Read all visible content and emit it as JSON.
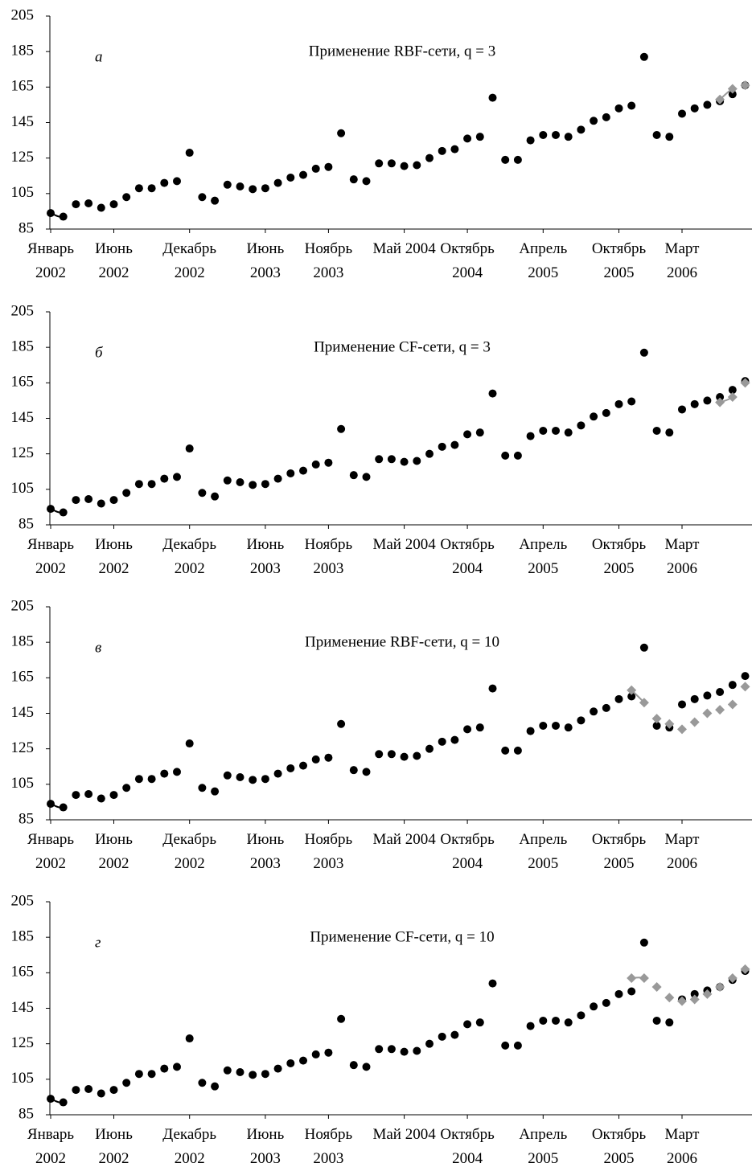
{
  "chart_data": [
    {
      "type": "line",
      "letter": "а",
      "title": "Применение RBF-сети, q = 3",
      "categories": [
        "Январь 2002",
        null,
        null,
        null,
        null,
        "Июнь 2002",
        null,
        null,
        null,
        null,
        null,
        "Декабрь 2002",
        null,
        null,
        null,
        null,
        null,
        "Июнь 2003",
        null,
        null,
        null,
        null,
        "Ноябрь 2003",
        null,
        null,
        null,
        null,
        null,
        "Май 2004",
        null,
        null,
        null,
        null,
        "Октябрь 2004",
        null,
        null,
        null,
        null,
        null,
        "Апрель 2005",
        null,
        null,
        null,
        null,
        null,
        "Октябрь 2005",
        null,
        null,
        null,
        null,
        "Март 2006",
        null,
        null,
        null,
        null,
        null
      ],
      "ylim": [
        85,
        205
      ],
      "yticks": [
        85,
        105,
        125,
        145,
        165,
        185,
        205
      ],
      "series": [
        {
          "color": "#000000",
          "marker": "circle",
          "line": true,
          "values": [
            94,
            92,
            99,
            99.5,
            97,
            99,
            103,
            108,
            108,
            111,
            112,
            128,
            103,
            101,
            110,
            109,
            107.5,
            108,
            111,
            114,
            115.5,
            119,
            120,
            139,
            113,
            112,
            122,
            122,
            120.5,
            121,
            125,
            129,
            130,
            136,
            137,
            159,
            124,
            124,
            135,
            138,
            138,
            137,
            141,
            146,
            148,
            153,
            154.5,
            182,
            138,
            137,
            150,
            153,
            155,
            157,
            null,
            null
          ]
        },
        {
          "color": "#000000",
          "marker": "circle",
          "line": false,
          "values": [
            null,
            null,
            null,
            null,
            null,
            null,
            null,
            null,
            null,
            null,
            null,
            null,
            null,
            null,
            null,
            null,
            null,
            null,
            null,
            null,
            null,
            null,
            null,
            null,
            null,
            null,
            null,
            null,
            null,
            null,
            null,
            null,
            null,
            null,
            null,
            null,
            null,
            null,
            null,
            null,
            null,
            null,
            null,
            null,
            null,
            null,
            null,
            null,
            null,
            null,
            null,
            null,
            null,
            null,
            161,
            166
          ]
        },
        {
          "color": "#999999",
          "marker": "diamond",
          "line": true,
          "values": [
            null,
            null,
            null,
            null,
            null,
            null,
            null,
            null,
            null,
            null,
            null,
            null,
            null,
            null,
            null,
            null,
            null,
            null,
            null,
            null,
            null,
            null,
            null,
            null,
            null,
            null,
            null,
            null,
            null,
            null,
            null,
            null,
            null,
            null,
            null,
            null,
            null,
            null,
            null,
            null,
            null,
            null,
            null,
            null,
            null,
            null,
            null,
            null,
            null,
            null,
            null,
            null,
            null,
            158,
            164,
            166
          ]
        }
      ]
    },
    {
      "type": "line",
      "letter": "б",
      "title": "Применение CF-сети, q = 3",
      "categories": [
        "Январь 2002",
        null,
        null,
        null,
        null,
        "Июнь 2002",
        null,
        null,
        null,
        null,
        null,
        "Декабрь 2002",
        null,
        null,
        null,
        null,
        null,
        "Июнь 2003",
        null,
        null,
        null,
        null,
        "Ноябрь 2003",
        null,
        null,
        null,
        null,
        null,
        "Май 2004",
        null,
        null,
        null,
        null,
        "Октябрь 2004",
        null,
        null,
        null,
        null,
        null,
        "Апрель 2005",
        null,
        null,
        null,
        null,
        null,
        "Октябрь 2005",
        null,
        null,
        null,
        null,
        "Март 2006",
        null,
        null,
        null,
        null,
        null
      ],
      "ylim": [
        85,
        205
      ],
      "yticks": [
        85,
        105,
        125,
        145,
        165,
        185,
        205
      ],
      "series": [
        {
          "color": "#000000",
          "marker": "circle",
          "line": true,
          "values": [
            94,
            92,
            99,
            99.5,
            97,
            99,
            103,
            108,
            108,
            111,
            112,
            128,
            103,
            101,
            110,
            109,
            107.5,
            108,
            111,
            114,
            115.5,
            119,
            120,
            139,
            113,
            112,
            122,
            122,
            120.5,
            121,
            125,
            129,
            130,
            136,
            137,
            159,
            124,
            124,
            135,
            138,
            138,
            137,
            141,
            146,
            148,
            153,
            154.5,
            182,
            138,
            137,
            150,
            153,
            155,
            157,
            null,
            null
          ]
        },
        {
          "color": "#000000",
          "marker": "circle",
          "line": false,
          "values": [
            null,
            null,
            null,
            null,
            null,
            null,
            null,
            null,
            null,
            null,
            null,
            null,
            null,
            null,
            null,
            null,
            null,
            null,
            null,
            null,
            null,
            null,
            null,
            null,
            null,
            null,
            null,
            null,
            null,
            null,
            null,
            null,
            null,
            null,
            null,
            null,
            null,
            null,
            null,
            null,
            null,
            null,
            null,
            null,
            null,
            null,
            null,
            null,
            null,
            null,
            null,
            null,
            null,
            null,
            161,
            166
          ]
        },
        {
          "color": "#999999",
          "marker": "diamond",
          "line": true,
          "values": [
            null,
            null,
            null,
            null,
            null,
            null,
            null,
            null,
            null,
            null,
            null,
            null,
            null,
            null,
            null,
            null,
            null,
            null,
            null,
            null,
            null,
            null,
            null,
            null,
            null,
            null,
            null,
            null,
            null,
            null,
            null,
            null,
            null,
            null,
            null,
            null,
            null,
            null,
            null,
            null,
            null,
            null,
            null,
            null,
            null,
            null,
            null,
            null,
            null,
            null,
            null,
            null,
            null,
            154,
            157,
            165
          ]
        }
      ]
    },
    {
      "type": "line",
      "letter": "в",
      "title": "Применение RBF-сети, q = 10",
      "categories": [
        "Январь 2002",
        null,
        null,
        null,
        null,
        "Июнь 2002",
        null,
        null,
        null,
        null,
        null,
        "Декабрь 2002",
        null,
        null,
        null,
        null,
        null,
        "Июнь 2003",
        null,
        null,
        null,
        null,
        "Ноябрь 2003",
        null,
        null,
        null,
        null,
        null,
        "Май 2004",
        null,
        null,
        null,
        null,
        "Октябрь 2004",
        null,
        null,
        null,
        null,
        null,
        "Апрель 2005",
        null,
        null,
        null,
        null,
        null,
        "Октябрь 2005",
        null,
        null,
        null,
        null,
        "Март 2006",
        null,
        null,
        null,
        null,
        null
      ],
      "ylim": [
        85,
        205
      ],
      "yticks": [
        85,
        105,
        125,
        145,
        165,
        185,
        205
      ],
      "series": [
        {
          "color": "#000000",
          "marker": "circle",
          "line": true,
          "values": [
            94,
            92,
            99,
            99.5,
            97,
            99,
            103,
            108,
            108,
            111,
            112,
            128,
            103,
            101,
            110,
            109,
            107.5,
            108,
            111,
            114,
            115.5,
            119,
            120,
            139,
            113,
            112,
            122,
            122,
            120.5,
            121,
            125,
            129,
            130,
            136,
            137,
            159,
            124,
            124,
            135,
            138,
            138,
            137,
            141,
            146,
            148,
            153,
            154.5,
            null,
            null,
            null,
            null,
            null,
            null,
            null,
            null,
            null
          ]
        },
        {
          "color": "#000000",
          "marker": "circle",
          "line": false,
          "values": [
            null,
            null,
            null,
            null,
            null,
            null,
            null,
            null,
            null,
            null,
            null,
            null,
            null,
            null,
            null,
            null,
            null,
            null,
            null,
            null,
            null,
            null,
            null,
            null,
            null,
            null,
            null,
            null,
            null,
            null,
            null,
            null,
            null,
            null,
            null,
            null,
            null,
            null,
            null,
            null,
            null,
            null,
            null,
            null,
            null,
            null,
            null,
            182,
            138,
            137,
            150,
            153,
            155,
            157,
            161,
            166
          ]
        },
        {
          "color": "#999999",
          "marker": "diamond",
          "line": true,
          "values": [
            null,
            null,
            null,
            null,
            null,
            null,
            null,
            null,
            null,
            null,
            null,
            null,
            null,
            null,
            null,
            null,
            null,
            null,
            null,
            null,
            null,
            null,
            null,
            null,
            null,
            null,
            null,
            null,
            null,
            null,
            null,
            null,
            null,
            null,
            null,
            null,
            null,
            null,
            null,
            null,
            null,
            null,
            null,
            null,
            null,
            null,
            158,
            151,
            142,
            139,
            136,
            140,
            145,
            147,
            150,
            160
          ]
        }
      ]
    },
    {
      "type": "line",
      "letter": "г",
      "title": "Применение CF-сети, q = 10",
      "categories": [
        "Январь 2002",
        null,
        null,
        null,
        null,
        "Июнь 2002",
        null,
        null,
        null,
        null,
        null,
        "Декабрь 2002",
        null,
        null,
        null,
        null,
        null,
        "Июнь 2003",
        null,
        null,
        null,
        null,
        "Ноябрь 2003",
        null,
        null,
        null,
        null,
        null,
        "Май 2004",
        null,
        null,
        null,
        null,
        "Октябрь 2004",
        null,
        null,
        null,
        null,
        null,
        "Апрель 2005",
        null,
        null,
        null,
        null,
        null,
        "Октябрь 2005",
        null,
        null,
        null,
        null,
        "Март 2006",
        null,
        null,
        null,
        null,
        null
      ],
      "ylim": [
        85,
        205
      ],
      "yticks": [
        85,
        105,
        125,
        145,
        165,
        185,
        205
      ],
      "series": [
        {
          "color": "#000000",
          "marker": "circle",
          "line": true,
          "values": [
            94,
            92,
            99,
            99.5,
            97,
            99,
            103,
            108,
            108,
            111,
            112,
            128,
            103,
            101,
            110,
            109,
            107.5,
            108,
            111,
            114,
            115.5,
            119,
            120,
            139,
            113,
            112,
            122,
            122,
            120.5,
            121,
            125,
            129,
            130,
            136,
            137,
            159,
            124,
            124,
            135,
            138,
            138,
            137,
            141,
            146,
            148,
            153,
            154.5,
            null,
            null,
            null,
            null,
            null,
            null,
            null,
            null,
            null
          ]
        },
        {
          "color": "#000000",
          "marker": "circle",
          "line": false,
          "values": [
            null,
            null,
            null,
            null,
            null,
            null,
            null,
            null,
            null,
            null,
            null,
            null,
            null,
            null,
            null,
            null,
            null,
            null,
            null,
            null,
            null,
            null,
            null,
            null,
            null,
            null,
            null,
            null,
            null,
            null,
            null,
            null,
            null,
            null,
            null,
            null,
            null,
            null,
            null,
            null,
            null,
            null,
            null,
            null,
            null,
            null,
            null,
            182,
            138,
            137,
            150,
            153,
            155,
            157,
            161,
            166
          ]
        },
        {
          "color": "#999999",
          "marker": "diamond",
          "line": true,
          "values": [
            null,
            null,
            null,
            null,
            null,
            null,
            null,
            null,
            null,
            null,
            null,
            null,
            null,
            null,
            null,
            null,
            null,
            null,
            null,
            null,
            null,
            null,
            null,
            null,
            null,
            null,
            null,
            null,
            null,
            null,
            null,
            null,
            null,
            null,
            null,
            null,
            null,
            null,
            null,
            null,
            null,
            null,
            null,
            null,
            null,
            null,
            162,
            162,
            157,
            151,
            149,
            150,
            153,
            157,
            162,
            167
          ]
        }
      ]
    }
  ]
}
